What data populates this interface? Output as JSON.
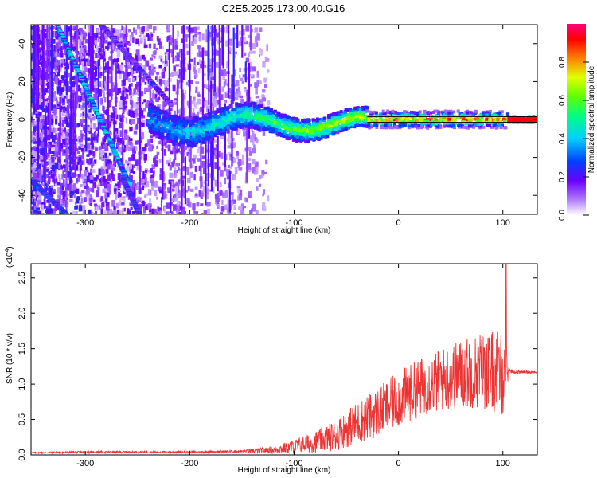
{
  "title": "C2E5.2025.173.00.40.G16",
  "chart_data": [
    {
      "type": "heatmap",
      "xlabel": "Height of straight line (km)",
      "ylabel": "Frequency (Hz)",
      "xlim": [
        -352,
        133
      ],
      "ylim": [
        -50,
        50
      ],
      "xticks": [
        -300,
        -200,
        -100,
        0,
        100
      ],
      "yticks": [
        -40,
        -20,
        0,
        20,
        40
      ],
      "xtick_labels": [
        "-300",
        "-200",
        "-100",
        "0",
        "100"
      ],
      "ytick_labels": [
        "-40",
        "-20",
        "0",
        "20",
        "40"
      ],
      "colorbar": {
        "label": "Normalized spectral amplitude",
        "range": [
          0,
          1
        ],
        "ticks": [
          0.0,
          0.2,
          0.4,
          0.6,
          0.8
        ],
        "tick_labels": [
          "0.0",
          "0.2",
          "0.4",
          "0.6",
          "0.8"
        ]
      },
      "ridges": [
        {
          "from": [
            -327,
            50
          ],
          "to": [
            -258,
            -34
          ],
          "peak_amplitude": 0.45
        },
        {
          "from": [
            -285,
            50
          ],
          "to": [
            -218,
            8
          ],
          "peak_amplitude": 0.25
        },
        {
          "from": [
            -352,
            -32
          ],
          "to": [
            -318,
            -50
          ],
          "peak_amplitude": 0.35
        },
        {
          "from": [
            -265,
            -30
          ],
          "to": [
            -248,
            -50
          ],
          "peak_amplitude": 0.3
        }
      ],
      "carrier_band": {
        "x_from": -30,
        "x_to": 133,
        "freq": 0,
        "peak_amplitude": 1.0
      }
    },
    {
      "type": "line",
      "xlabel": "Height of straight line (km)",
      "ylabel": "SNR (10 * v/v)",
      "y_scale_label": "(x10",
      "y_scale_exp": "4",
      "y_scale_close": ")",
      "xlim": [
        -352,
        133
      ],
      "ylim": [
        0,
        2.7
      ],
      "xticks": [
        -300,
        -200,
        -100,
        0,
        100
      ],
      "yticks": [
        0.0,
        0.5,
        1.0,
        1.5,
        2.0,
        2.5
      ],
      "xtick_labels": [
        "-300",
        "-200",
        "-100",
        "0",
        "100"
      ],
      "ytick_labels": [
        "0.0",
        "0.5",
        "1.0",
        "1.5",
        "2.0",
        "2.5"
      ],
      "color": "#ee3333",
      "envelope": {
        "x": [
          -352,
          -300,
          -200,
          -150,
          -120,
          -100,
          -80,
          -60,
          -40,
          -20,
          0,
          20,
          40,
          60,
          80,
          100,
          106,
          110,
          133
        ],
        "mean": [
          0.03,
          0.04,
          0.04,
          0.05,
          0.07,
          0.12,
          0.18,
          0.28,
          0.45,
          0.6,
          0.78,
          0.95,
          1.05,
          1.15,
          1.2,
          1.15,
          1.2,
          1.17,
          1.17
        ],
        "spread": [
          0.01,
          0.015,
          0.015,
          0.02,
          0.05,
          0.1,
          0.15,
          0.22,
          0.3,
          0.35,
          0.4,
          0.42,
          0.45,
          0.5,
          0.55,
          0.6,
          0.05,
          0.02,
          0.02
        ]
      },
      "peak": {
        "x": 103,
        "y": 2.7
      }
    }
  ]
}
